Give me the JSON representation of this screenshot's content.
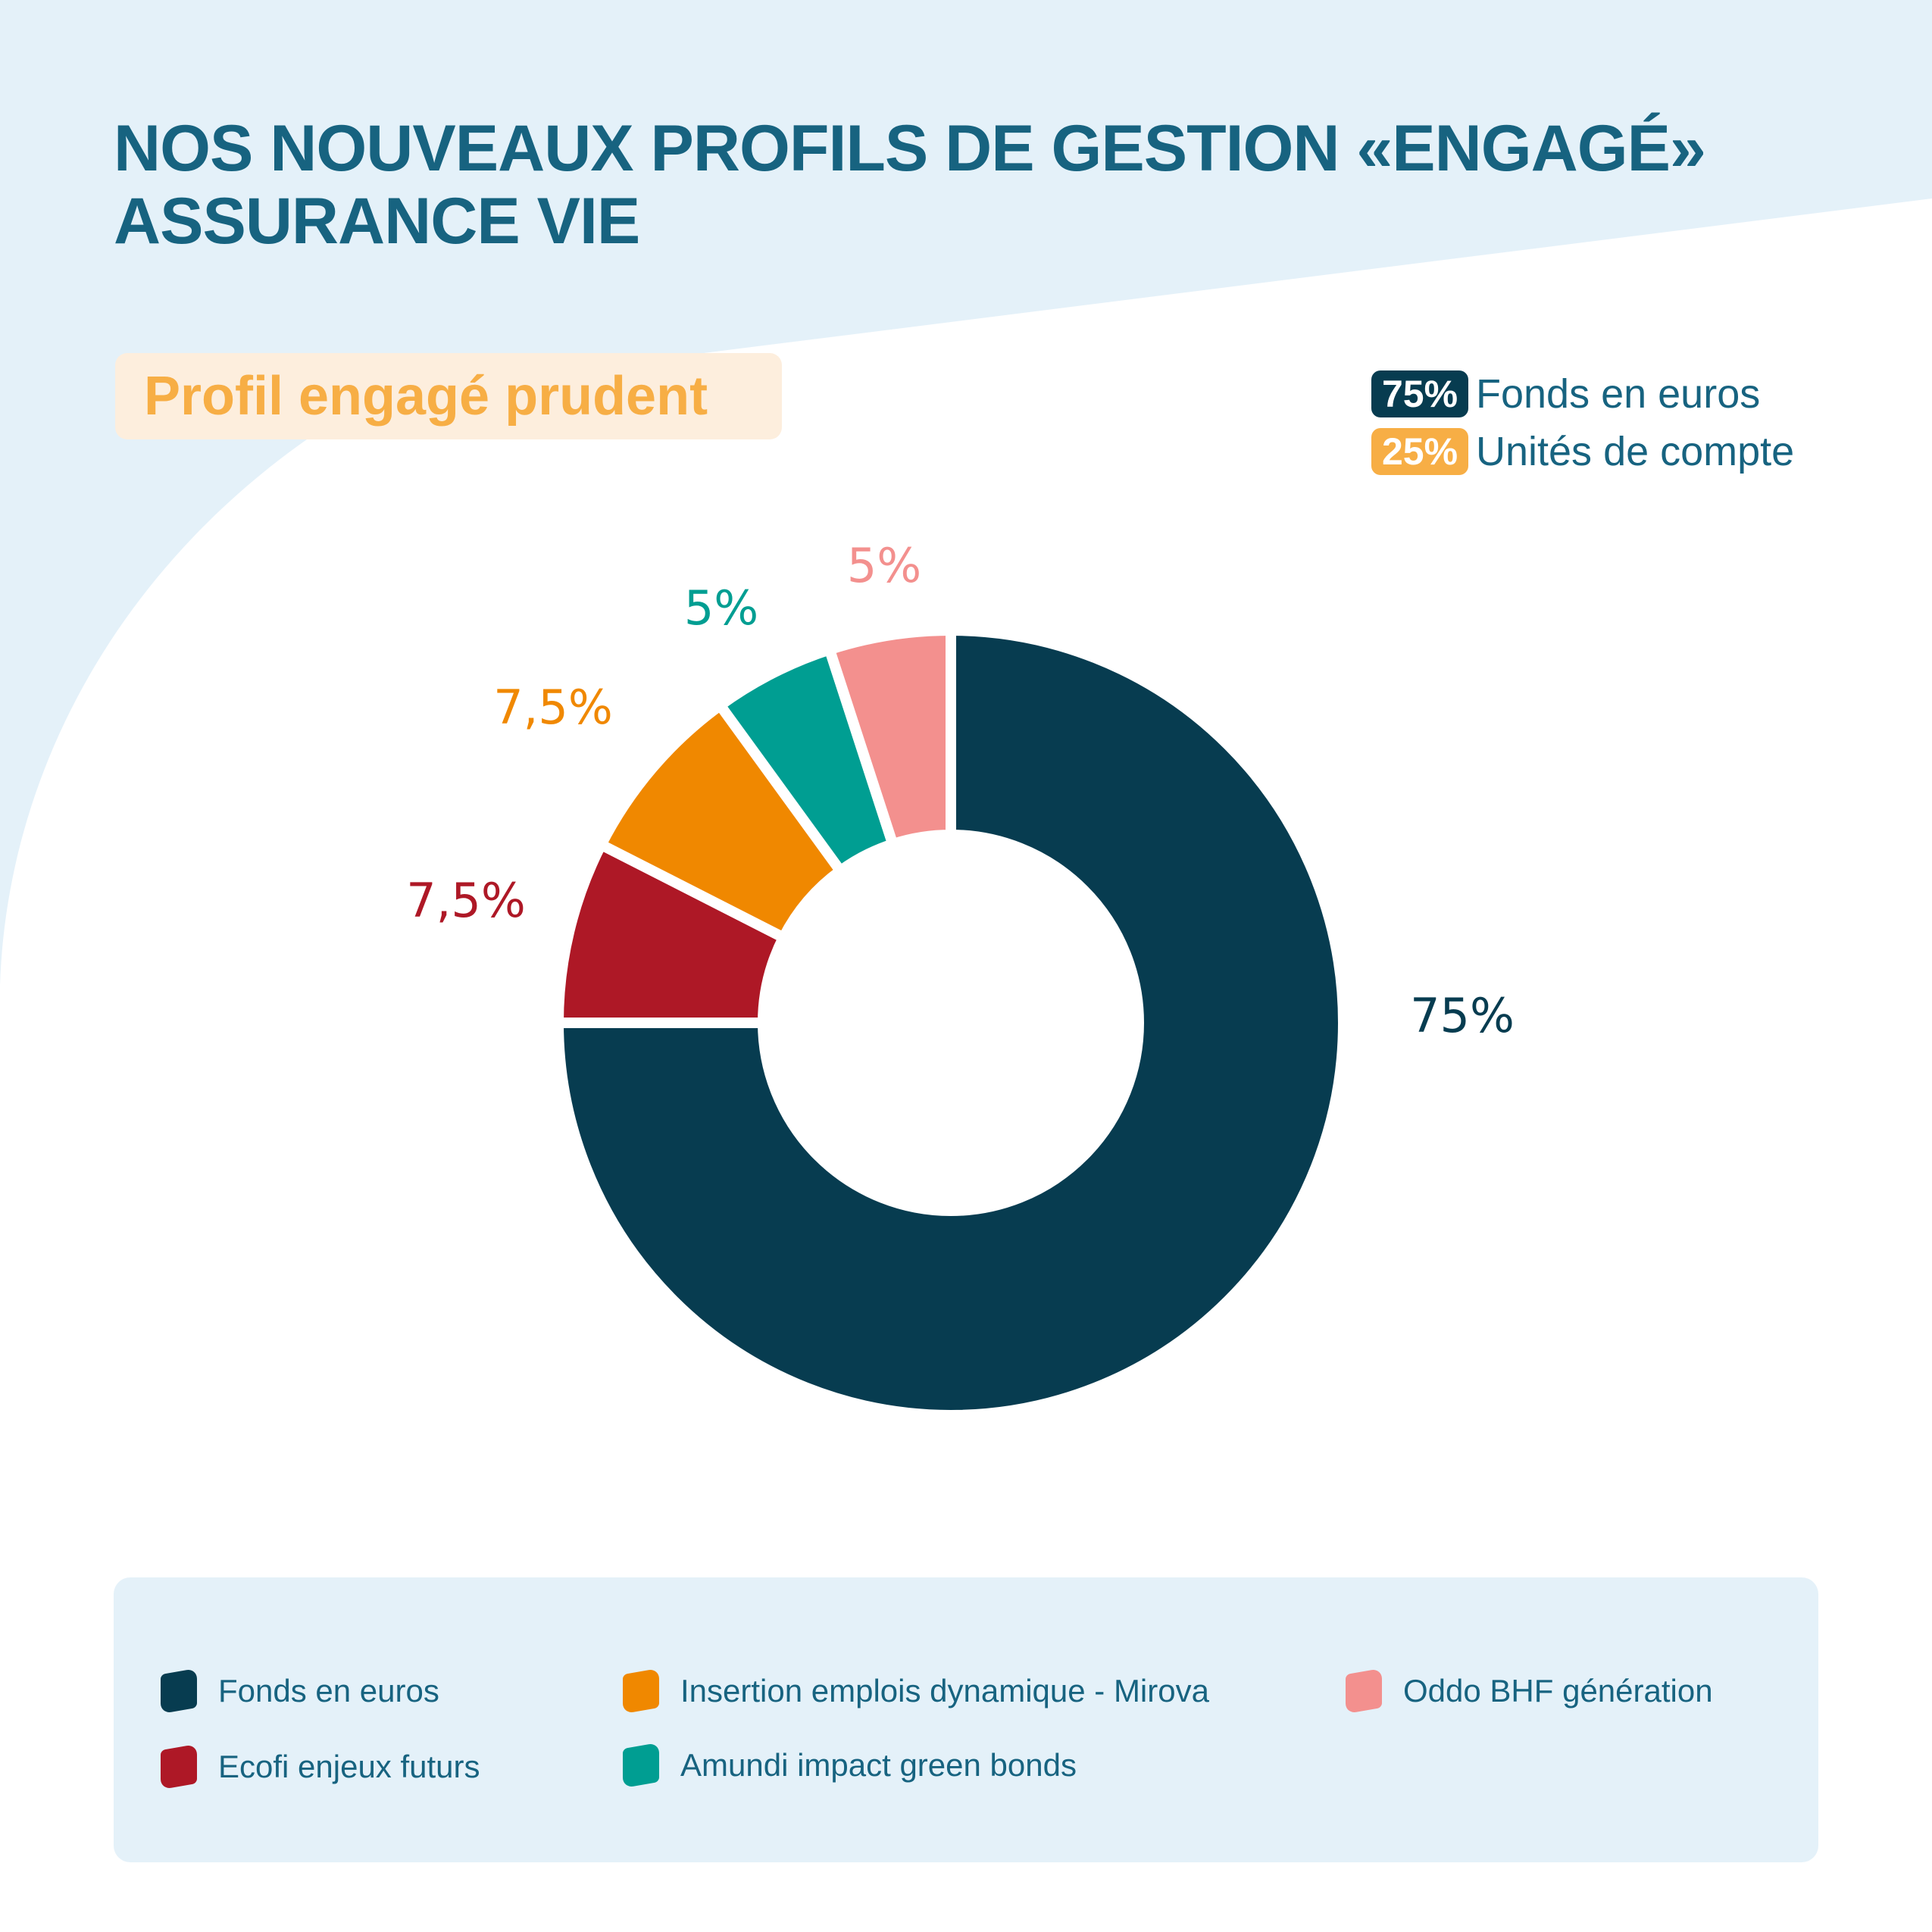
{
  "title": {
    "line1": "NOS NOUVEAUX PROFILS DE GESTION «ENGAGÉ»",
    "line2": "ASSURANCE VIE"
  },
  "profile": {
    "label": "Profil engagé prudent"
  },
  "allocation": [
    {
      "percent": "75%",
      "label": "Fonds en euros",
      "color": "#073c50"
    },
    {
      "percent": "25%",
      "label": "Unités de compte",
      "color": "#f7ae45"
    }
  ],
  "chart_data": {
    "type": "pie",
    "categories": [
      "Fonds en euros",
      "Ecofi enjeux futurs",
      "Insertion emplois dynamique - Mirova",
      "Amundi impact green bonds",
      "Oddo BHF génération"
    ],
    "values": [
      75,
      7.5,
      7.5,
      5,
      5
    ],
    "data_labels": [
      "75%",
      "7,5%",
      "7,5%",
      "5%",
      "5%"
    ],
    "colors": [
      "#073c50",
      "#ae1826",
      "#f08800",
      "#009e92",
      "#f3908e"
    ],
    "legend_position": "bottom"
  },
  "legend": [
    {
      "label": "Fonds en euros",
      "color": "#073c50"
    },
    {
      "label": "Ecofi enjeux futurs",
      "color": "#ae1826"
    },
    {
      "label": "Insertion emplois dynamique - Mirova",
      "color": "#f08800"
    },
    {
      "label": "Amundi impact green bonds",
      "color": "#009e92"
    },
    {
      "label": "Oddo BHF génération",
      "color": "#f3908e"
    }
  ],
  "colors": {
    "title": "#176380",
    "background_light": "#e4f1f9",
    "accent": "#f7ae45"
  }
}
